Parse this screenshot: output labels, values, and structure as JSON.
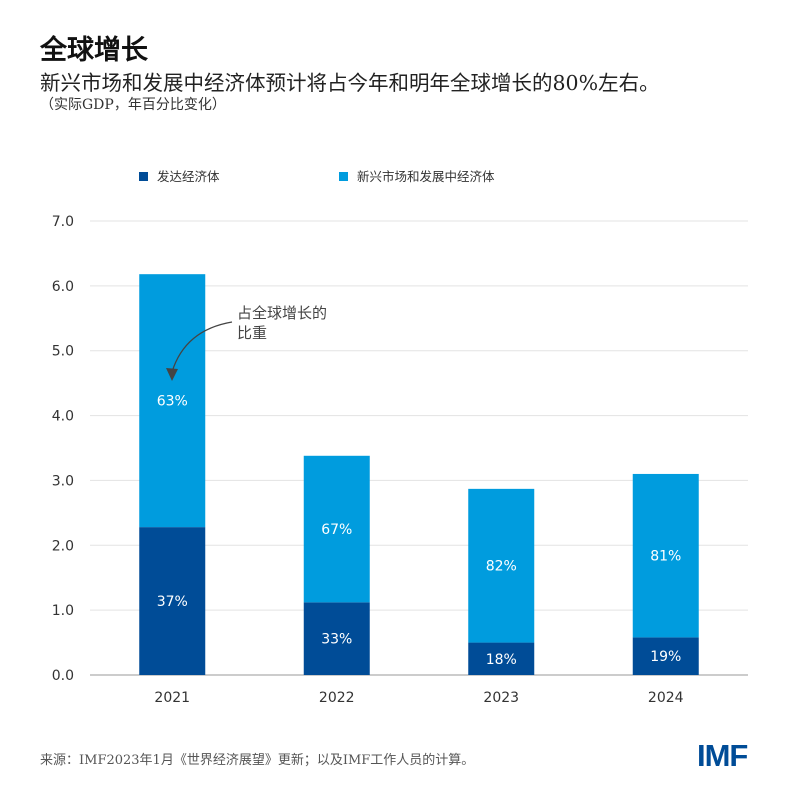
{
  "header": {
    "title": "全球增长",
    "subtitle": "新兴市场和发展中经济体预计将占今年和明年全球增长的80%左右。",
    "note": "（实际GDP，年百分比变化）"
  },
  "footer": {
    "source": "来源：IMF2023年1月《世界经济展望》更新；以及IMF工作人员的计算。",
    "logo": "IMF"
  },
  "chart_data": {
    "type": "bar",
    "stacked": true,
    "categories": [
      "2021",
      "2022",
      "2023",
      "2024"
    ],
    "series": [
      {
        "name": "发达经济体",
        "color": "#004c97",
        "values": [
          2.28,
          1.12,
          0.5,
          0.58
        ],
        "labels": [
          "37%",
          "33%",
          "18%",
          "19%"
        ]
      },
      {
        "name": "新兴市场和发展中经济体",
        "color": "#009cde",
        "values": [
          3.9,
          2.26,
          2.37,
          2.52
        ],
        "labels": [
          "63%",
          "67%",
          "82%",
          "81%"
        ]
      }
    ],
    "ylim": [
      0,
      7
    ],
    "yticks": [
      "0.0",
      "1.0",
      "2.0",
      "3.0",
      "4.0",
      "5.0",
      "6.0",
      "7.0"
    ],
    "grid": true,
    "legend": "top-left",
    "annotation": [
      "占全球增长的",
      "比重"
    ]
  }
}
